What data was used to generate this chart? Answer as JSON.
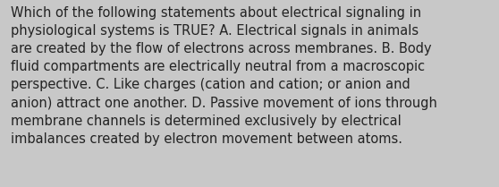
{
  "lines": [
    "Which of the following statements about electrical signaling in",
    "physiological systems is TRUE? A. Electrical signals in animals",
    "are created by the flow of electrons across membranes. B. Body",
    "fluid compartments are electrically neutral from a macroscopic",
    "perspective. C. Like charges (cation and cation; or anion and",
    "anion) attract one another. D. Passive movement of ions through",
    "membrane channels is determined exclusively by electrical",
    "imbalances created by electron movement between atoms."
  ],
  "background_color": "#c8c8c8",
  "text_color": "#222222",
  "font_size": 10.5,
  "fig_width": 5.58,
  "fig_height": 2.09,
  "font_family": "DejaVu Sans"
}
